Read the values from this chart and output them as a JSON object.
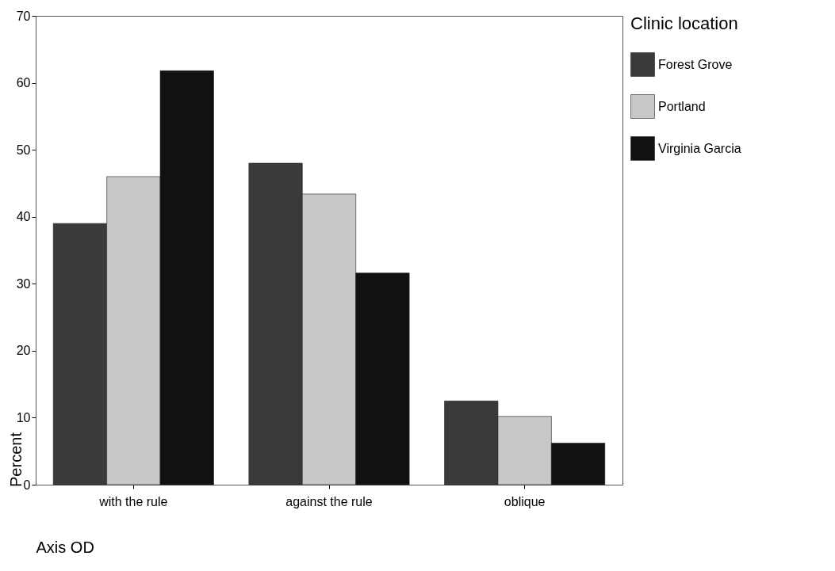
{
  "chart_data": {
    "type": "bar",
    "xlabel": "Axis OD",
    "ylabel": "Percent",
    "legend_title": "Clinic location",
    "categories": [
      "with the rule",
      "against the rule",
      "oblique"
    ],
    "series": [
      {
        "name": "Forest Grove",
        "color": "#3a3a3a",
        "values": [
          39,
          48,
          12.5
        ]
      },
      {
        "name": "Portland",
        "color": "#c8c8c8",
        "values": [
          46,
          43.4,
          10.2
        ]
      },
      {
        "name": "Virginia Garcia",
        "color": "#111111",
        "values": [
          61.8,
          31.6,
          6.2
        ]
      }
    ],
    "ylim": [
      0,
      70
    ],
    "yticks": [
      0,
      10,
      20,
      30,
      40,
      50,
      60,
      70
    ],
    "grid": false,
    "legend": "right"
  }
}
